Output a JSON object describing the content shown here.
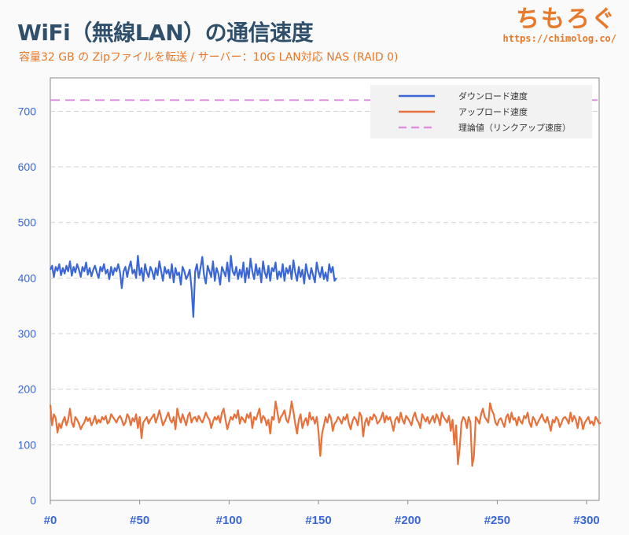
{
  "header": {
    "title": "WiFi（無線LAN）の通信速度",
    "subtitle": "容量32 GB の Zipファイルを転送 / サーバー：10G LAN対応 NAS (RAID 0)"
  },
  "brand": {
    "name": "ちもろぐ",
    "url": "https://chimolog.co/"
  },
  "chart_data": {
    "type": "line",
    "xlabel": "",
    "ylabel": "",
    "x_tick_labels": [
      "#0",
      "#50",
      "#100",
      "#150",
      "#200",
      "#250",
      "#300"
    ],
    "x_ticks": [
      0,
      50,
      100,
      150,
      200,
      250,
      300
    ],
    "xlim": [
      0,
      307
    ],
    "ylim": [
      0,
      760
    ],
    "y_ticks": [
      0,
      100,
      200,
      300,
      400,
      500,
      600,
      700
    ],
    "grid": true,
    "legend_position": "top-right",
    "series": [
      {
        "name": "ダウンロード速度",
        "color": "#3a66d8",
        "style": "solid",
        "values": [
          415,
          422,
          402,
          420,
          413,
          425,
          405,
          418,
          408,
          422,
          412,
          430,
          404,
          420,
          410,
          425,
          415,
          402,
          420,
          412,
          428,
          406,
          418,
          403,
          415,
          422,
          410,
          400,
          420,
          412,
          425,
          408,
          415,
          398,
          420,
          405,
          418,
          412,
          425,
          410,
          382,
          412,
          420,
          402,
          418,
          430,
          408,
          415,
          400,
          440,
          405,
          418,
          395,
          425,
          410,
          402,
          420,
          412,
          398,
          418,
          405,
          430,
          412,
          395,
          420,
          408,
          415,
          400,
          425,
          392,
          418,
          405,
          410,
          388,
          420,
          412,
          398,
          405,
          415,
          382,
          330,
          412,
          425,
          400,
          418,
          438,
          405,
          390,
          422,
          412,
          402,
          430,
          395,
          418,
          408,
          388,
          420,
          412,
          403,
          428,
          394,
          440,
          412,
          405,
          420,
          398,
          415,
          402,
          428,
          392,
          418,
          400,
          435,
          412,
          398,
          425,
          405,
          418,
          392,
          430,
          410,
          400,
          422,
          395,
          418,
          412,
          428,
          398,
          412,
          402,
          425,
          395,
          418,
          408,
          422,
          398,
          432,
          410,
          395,
          420,
          402,
          415,
          390,
          425,
          408,
          398,
          418,
          405,
          392,
          428,
          412,
          402,
          420,
          398,
          410,
          395,
          425,
          410,
          420,
          395,
          400
        ],
        "x_start": 0
      },
      {
        "name": "アップロード速度",
        "color": "#e8703a",
        "style": "solid",
        "values": [
          172,
          135,
          155,
          148,
          122,
          138,
          130,
          142,
          150,
          135,
          145,
          165,
          140,
          132,
          150,
          145,
          138,
          128,
          135,
          140,
          150,
          143,
          148,
          135,
          142,
          152,
          138,
          145,
          140,
          150,
          145,
          152,
          138,
          142,
          155,
          150,
          145,
          140,
          148,
          152,
          145,
          135,
          140,
          155,
          150,
          135,
          148,
          142,
          155,
          130,
          150,
          112,
          140,
          145,
          150,
          138,
          145,
          150,
          155,
          140,
          150,
          162,
          148,
          135,
          142,
          150,
          158,
          145,
          140,
          150,
          128,
          165,
          150,
          140,
          155,
          145,
          135,
          152,
          158,
          140,
          148,
          150,
          142,
          152,
          145,
          140,
          148,
          158,
          150,
          145,
          130,
          142,
          150,
          145,
          152,
          140,
          158,
          165,
          145,
          128,
          140,
          150,
          145,
          155,
          148,
          162,
          138,
          150,
          145,
          140,
          155,
          148,
          158,
          130,
          150,
          145,
          155,
          165,
          140,
          152,
          148,
          135,
          145,
          120,
          150,
          145,
          178,
          160,
          140,
          150,
          155,
          162,
          145,
          140,
          155,
          178,
          160,
          138,
          120,
          145,
          155,
          130,
          142,
          148,
          135,
          158,
          145,
          150,
          138,
          150,
          125,
          80,
          120,
          135,
          150,
          140,
          155,
          148,
          125,
          138,
          142,
          150,
          145,
          138,
          150,
          145,
          155,
          138,
          128,
          142,
          150,
          145,
          135,
          158,
          152,
          115,
          140,
          148,
          135,
          150,
          145,
          155,
          150,
          138,
          142,
          148,
          158,
          140,
          152,
          145,
          150,
          138,
          125,
          145,
          150,
          140,
          158,
          145,
          138,
          152,
          148,
          142,
          135,
          150,
          158,
          145,
          140,
          130,
          155,
          148,
          142,
          150,
          138,
          145,
          152,
          140,
          155,
          148,
          135,
          158,
          150,
          145,
          140,
          152,
          125,
          145,
          100,
          135,
          65,
          95,
          140,
          150,
          145,
          130,
          150,
          140,
          62,
          80,
          150,
          145,
          138,
          155,
          165,
          150,
          145,
          140,
          175,
          162,
          155,
          140,
          135,
          145,
          148,
          140,
          132,
          150,
          155,
          140,
          158,
          145,
          148,
          135,
          150,
          142,
          138,
          152,
          148,
          158,
          140,
          132,
          150,
          145,
          135,
          142,
          148,
          155,
          145,
          140,
          150,
          138,
          125,
          145,
          140,
          150,
          145,
          132,
          140,
          148,
          150,
          145,
          138,
          158,
          142,
          152,
          145,
          130,
          150,
          145,
          128,
          140,
          145,
          150,
          138,
          142,
          135,
          150,
          145,
          138,
          140
        ],
        "x_start": 0
      },
      {
        "name": "理論値（リンクアップ速度）",
        "color": "#e08ee0",
        "style": "dashed",
        "values": [
          720,
          720
        ],
        "x": [
          0,
          307
        ]
      }
    ]
  }
}
